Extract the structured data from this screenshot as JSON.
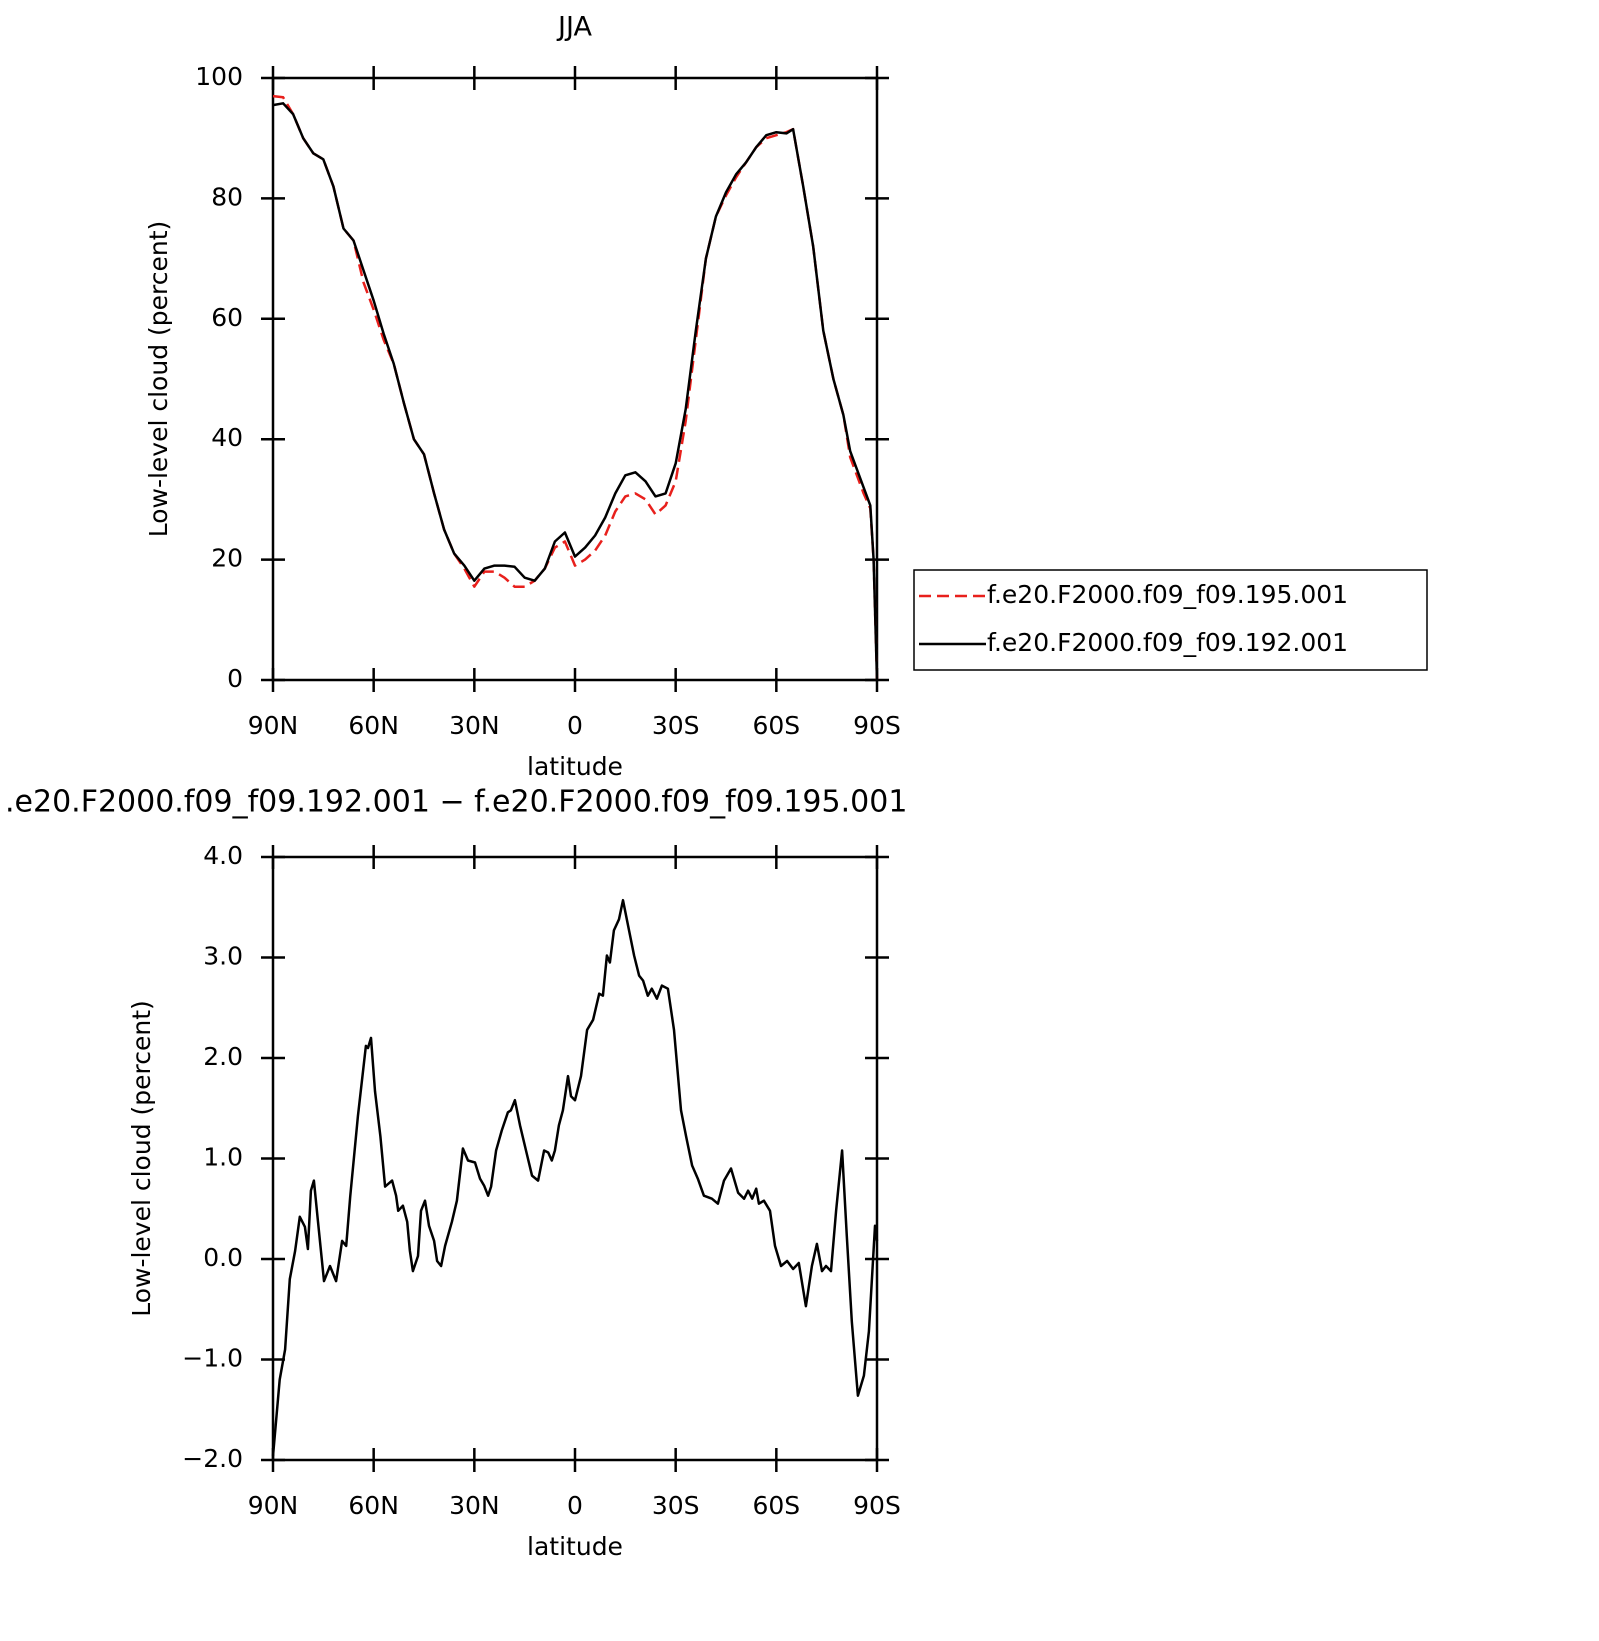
{
  "chart_data": [
    {
      "type": "line",
      "title": "JJA",
      "xlabel": "latitude",
      "ylabel": "Low-level cloud (percent)",
      "xlim": [
        90,
        -90
      ],
      "ylim": [
        0,
        100
      ],
      "xticks": [
        {
          "value": 90,
          "label": "90N"
        },
        {
          "value": 60,
          "label": "60N"
        },
        {
          "value": 30,
          "label": "30N"
        },
        0,
        {
          "value": -30,
          "label": "30S"
        },
        {
          "value": -60,
          "label": "60S"
        },
        {
          "value": -90,
          "label": "90S"
        }
      ],
      "yticks": [
        0,
        20,
        40,
        60,
        80,
        100
      ],
      "x": [
        90,
        87,
        84,
        81,
        78,
        75,
        72,
        69,
        66,
        63,
        60,
        57,
        54,
        51,
        48,
        45,
        42,
        39,
        36,
        33,
        30,
        27,
        24,
        21,
        18,
        15,
        12,
        9,
        6,
        3,
        0,
        -3,
        -6,
        -9,
        -12,
        -15,
        -18,
        -21,
        -24,
        -27,
        -30,
        -33,
        -36,
        -39,
        -42,
        -45,
        -48,
        -51,
        -54,
        -57,
        -60,
        -63,
        -65,
        -68,
        -71,
        -74,
        -77,
        -80,
        -82,
        -84,
        -86,
        -88,
        -89,
        -90
      ],
      "legend": "right",
      "series": [
        {
          "name": "f.e20.F2000.f09_f09.195.001",
          "color": "#e8201c",
          "linestyle": "dashed",
          "values": [
            97,
            96.8,
            94,
            90,
            87.5,
            86.5,
            82,
            75,
            73,
            66,
            61.5,
            56.5,
            52.5,
            46,
            40,
            37.5,
            31,
            25,
            21,
            18.5,
            15.5,
            18,
            18,
            17,
            15.5,
            15.5,
            16.5,
            18.5,
            22,
            23,
            19,
            20,
            21.5,
            24,
            28,
            30.5,
            31,
            30,
            27.5,
            29,
            33,
            43,
            56.5,
            70,
            77,
            80.5,
            83.5,
            86,
            88.5,
            90,
            90.5,
            91,
            91.5,
            82,
            72,
            58,
            50,
            44,
            37,
            34,
            31,
            28.5,
            20,
            0
          ]
        },
        {
          "name": "f.e20.F2000.f09_f09.192.001",
          "color": "#000000",
          "linestyle": "solid",
          "values": [
            95.5,
            95.8,
            94,
            90,
            87.5,
            86.5,
            82,
            75,
            73,
            68,
            63,
            57.5,
            52.5,
            46,
            40,
            37.5,
            31,
            25,
            21,
            19,
            16.5,
            18.5,
            19,
            19,
            18.8,
            17,
            16.5,
            18.5,
            23,
            24.5,
            20.5,
            22,
            24,
            27,
            31,
            34,
            34.5,
            33,
            30.5,
            31,
            36,
            45,
            58,
            70,
            77,
            81,
            84,
            86,
            88.5,
            90.5,
            91,
            90.8,
            91.5,
            82,
            72,
            58,
            50,
            44,
            38,
            35,
            32,
            29,
            20,
            0
          ]
        }
      ]
    },
    {
      "type": "line",
      "title": ".e20.F2000.f09_f09.192.001 − f.e20.F2000.f09_f09.195.001",
      "xlabel": "latitude",
      "ylabel": "Low-level cloud (percent)",
      "xlim": [
        90,
        -90
      ],
      "ylim": [
        -2,
        4
      ],
      "xticks": [
        {
          "value": 90,
          "label": "90N"
        },
        {
          "value": 60,
          "label": "60N"
        },
        {
          "value": 30,
          "label": "30N"
        },
        0,
        {
          "value": -30,
          "label": "30S"
        },
        {
          "value": -60,
          "label": "60S"
        },
        {
          "value": -90,
          "label": "90S"
        }
      ],
      "yticks": [
        {
          "value": -2,
          "label": "−2.0"
        },
        {
          "value": -1,
          "label": "−1.0"
        },
        {
          "value": 0,
          "label": "0.0"
        },
        {
          "value": 1,
          "label": "1.0"
        },
        {
          "value": 2,
          "label": "2.0"
        },
        {
          "value": 3,
          "label": "3.0"
        },
        {
          "value": 4,
          "label": "4.0"
        }
      ],
      "color": "#000000",
      "x": [
        90,
        88,
        86.4,
        85,
        83.4,
        82,
        80.5,
        79.6,
        78.7,
        77.8,
        76.6,
        74.8,
        73,
        71.2,
        69.4,
        68.2,
        67,
        64.7,
        62.3,
        61.7,
        60.8,
        59.6,
        58,
        56.6,
        54.5,
        53.3,
        52.7,
        51.3,
        50,
        49.2,
        48.3,
        46.8,
        45.9,
        44.7,
        43.5,
        42,
        41.1,
        39.9,
        38.7,
        36.7,
        35.2,
        33.4,
        31.9,
        29.8,
        28.3,
        27.1,
        25.9,
        25,
        23.5,
        21.8,
        20,
        19.1,
        17.9,
        16.4,
        14.6,
        12.8,
        11,
        9.2,
        8,
        6.9,
        6,
        4.8,
        3.6,
        2.1,
        1.2,
        0,
        -1.8,
        -3.6,
        -5.4,
        -7.2,
        -8.3,
        -9.5,
        -10.4,
        -11.6,
        -13.1,
        -14.3,
        -15.8,
        -17.6,
        -19.1,
        -20.3,
        -21.7,
        -22.9,
        -24.4,
        -25.9,
        -27.7,
        -29.5,
        -31.6,
        -33.1,
        -34.9,
        -36.6,
        -38.4,
        -40.8,
        -42.6,
        -44.4,
        -46.5,
        -48.6,
        -50.4,
        -51.6,
        -52.8,
        -54,
        -54.8,
        -56.3,
        -58.1,
        -59.6,
        -61.4,
        -63.2,
        -65,
        -66.7,
        -68.8,
        -70.6,
        -72.1,
        -73.6,
        -74.8,
        -76.3,
        -77.8,
        -79.6,
        -81,
        -82.5,
        -84.3,
        -86.1,
        -87.6,
        -89.4,
        -90
      ],
      "values": [
        -1.96,
        -1.2,
        -0.9,
        -0.2,
        0.08,
        0.42,
        0.32,
        0.1,
        0.68,
        0.78,
        0.37,
        -0.22,
        -0.07,
        -0.22,
        0.18,
        0.13,
        0.62,
        1.42,
        2.12,
        2.1,
        2.2,
        1.67,
        1.22,
        0.72,
        0.78,
        0.63,
        0.48,
        0.53,
        0.37,
        0.08,
        -0.12,
        0.03,
        0.48,
        0.58,
        0.33,
        0.18,
        -0.02,
        -0.07,
        0.13,
        0.37,
        0.58,
        1.1,
        0.98,
        0.96,
        0.8,
        0.73,
        0.63,
        0.72,
        1.08,
        1.28,
        1.46,
        1.48,
        1.58,
        1.33,
        1.08,
        0.83,
        0.78,
        1.08,
        1.06,
        0.98,
        1.08,
        1.33,
        1.48,
        1.82,
        1.62,
        1.58,
        1.82,
        2.28,
        2.38,
        2.64,
        2.62,
        3.02,
        2.95,
        3.27,
        3.38,
        3.57,
        3.32,
        3.02,
        2.82,
        2.77,
        2.62,
        2.69,
        2.59,
        2.72,
        2.69,
        2.28,
        1.48,
        1.22,
        0.93,
        0.8,
        0.63,
        0.6,
        0.55,
        0.78,
        0.9,
        0.66,
        0.6,
        0.68,
        0.6,
        0.7,
        0.55,
        0.58,
        0.48,
        0.13,
        -0.07,
        -0.02,
        -0.1,
        -0.04,
        -0.47,
        -0.07,
        0.15,
        -0.12,
        -0.07,
        -0.12,
        0.48,
        1.08,
        0.23,
        -0.62,
        -1.36,
        -1.16,
        -0.72,
        0.33,
        0.18
      ]
    }
  ]
}
